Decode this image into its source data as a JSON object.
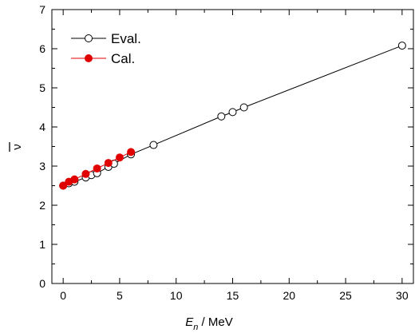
{
  "chart_data": {
    "type": "line",
    "xlabel": {
      "symbol": "E",
      "subscript": "n",
      "suffix": " / MeV"
    },
    "ylabel": "ν",
    "xlim": [
      -1,
      31
    ],
    "ylim": [
      0,
      7
    ],
    "x_ticks": [
      "0",
      "5",
      "10",
      "15",
      "20",
      "25",
      "30"
    ],
    "y_ticks": [
      "0",
      "1",
      "2",
      "3",
      "4",
      "5",
      "6",
      "7"
    ],
    "grid": false,
    "legend_position": "top-left",
    "series": [
      {
        "name": "Eval.",
        "color": "#000000",
        "marker": "open-circle",
        "x": [
          0,
          0.5,
          1,
          2,
          2.5,
          3,
          4,
          4.5,
          6,
          8,
          14,
          15,
          16,
          30
        ],
        "y": [
          2.5,
          2.56,
          2.6,
          2.71,
          2.77,
          2.82,
          2.98,
          3.06,
          3.3,
          3.54,
          4.27,
          4.38,
          4.5,
          6.08
        ]
      },
      {
        "name": "Cal.",
        "color": "#e00000",
        "marker": "filled-circle",
        "x": [
          0,
          0.5,
          1,
          2,
          3,
          4,
          5,
          6
        ],
        "y": [
          2.5,
          2.6,
          2.66,
          2.8,
          2.94,
          3.08,
          3.22,
          3.36
        ]
      }
    ]
  }
}
